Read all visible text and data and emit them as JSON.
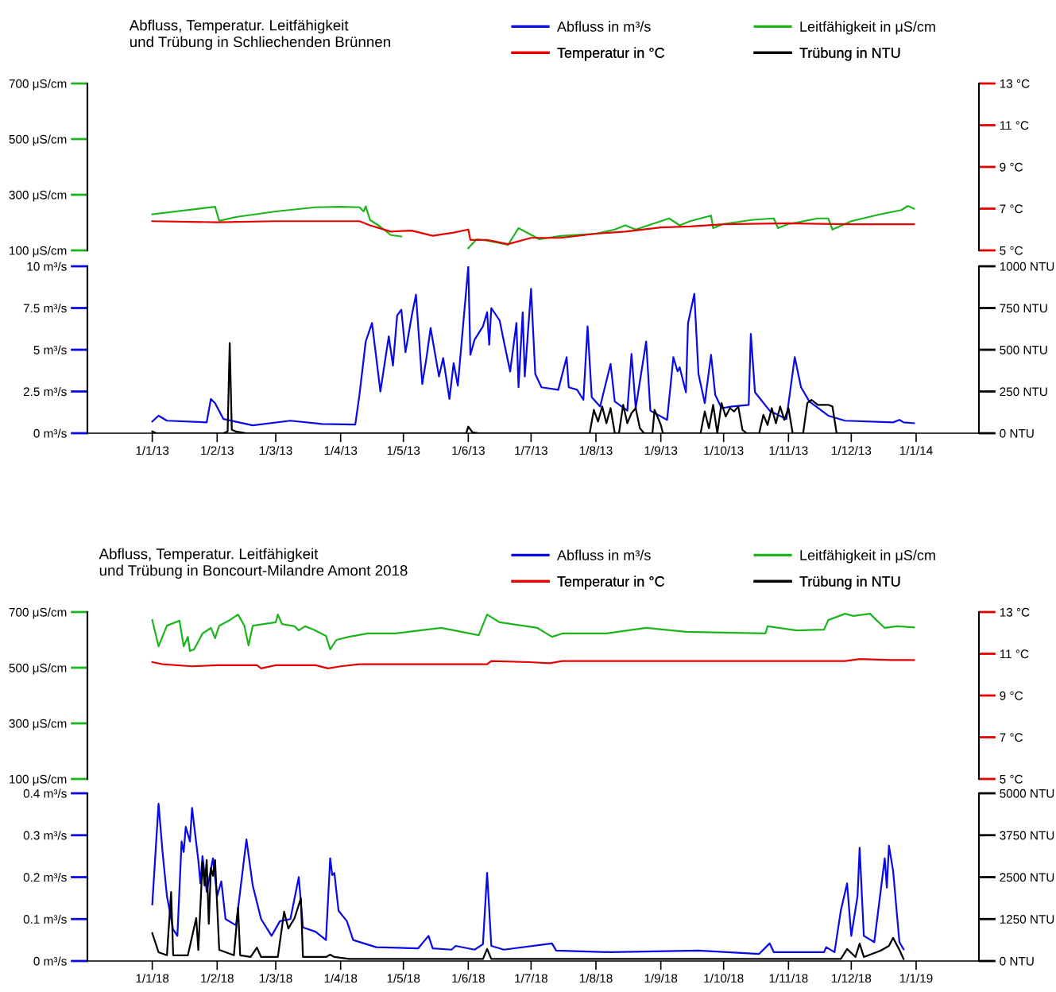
{
  "chart_data": [
    {
      "type": "line",
      "title": "Abfluss, Temperatur. Leitfähigkeit\nund Trübung in Schliechenden Brünnen",
      "legend": "top right",
      "marker": "none",
      "line_style": "solid",
      "grid": false,
      "tick_labels": "y",
      "xlim": [
        "2012-12-01",
        "2014-01-31"
      ],
      "ylim": [
        100,
        700
      ],
      "yticks": [
        {
          "value": 100,
          "label": "100 μS/cm"
        },
        {
          "value": 300,
          "label": "300 μS/cm"
        },
        {
          "value": 500,
          "label": "500 μS/cm"
        },
        {
          "value": 700,
          "label": "700 μS/cm"
        }
      ],
      "y2lim": [
        5,
        13
      ],
      "y2ticks": [
        {
          "value": 5,
          "label": "5 °C"
        },
        {
          "value": 7,
          "label": "7 °C"
        },
        {
          "value": 9,
          "label": "9 °C"
        },
        {
          "value": 11,
          "label": "11 °C"
        },
        {
          "value": 13,
          "label": "13 °C"
        }
      ],
      "series": [
        {
          "name": "Leitfähigkeit in μS/cm",
          "color": "#1eb41e",
          "x": [
            "2013-01-01",
            "2013-01-31",
            "2013-02-02",
            "2013-02-10",
            "2013-03-01",
            "2013-03-20",
            "2013-04-01",
            "2013-04-10",
            "2013-04-12",
            "2013-04-13",
            "2013-04-15",
            "2013-04-20",
            "2013-04-25",
            "2013-04-30",
            "2013-05-15",
            "2013-06-01",
            "2013-06-05",
            "2013-06-10",
            "2013-06-20",
            "2013-06-25",
            "2013-07-05",
            "2013-07-15",
            "2013-08-01",
            "2013-08-10",
            "2013-08-15",
            "2013-08-20",
            "2013-09-01",
            "2013-09-05",
            "2013-09-10",
            "2013-09-15",
            "2013-09-25",
            "2013-09-26",
            "2013-10-01",
            "2013-10-15",
            "2013-10-25",
            "2013-10-27",
            "2013-11-01",
            "2013-11-05",
            "2013-11-15",
            "2013-11-20",
            "2013-11-22",
            "2013-12-01",
            "2013-12-15",
            "2013-12-25",
            "2013-12-28",
            "2013-12-31"
          ],
          "values": [
            230,
            257,
            206,
            220,
            240,
            255,
            257,
            255,
            240,
            258,
            210,
            185,
            155,
            150,
            null,
            108,
            140,
            135,
            120,
            180,
            140,
            152,
            160,
            175,
            190,
            175,
            205,
            215,
            190,
            205,
            225,
            180,
            195,
            210,
            215,
            180,
            195,
            200,
            215,
            215,
            175,
            205,
            230,
            245,
            260,
            250
          ]
        },
        {
          "name": "Temperatur in °C",
          "color": "#e60000",
          "axis": "y2",
          "x": [
            "2013-01-01",
            "2013-02-01",
            "2013-03-01",
            "2013-04-10",
            "2013-04-15",
            "2013-04-25",
            "2013-05-05",
            "2013-05-15",
            "2013-05-25",
            "2013-06-01",
            "2013-06-02",
            "2013-06-10",
            "2013-06-20",
            "2013-07-01",
            "2013-07-15",
            "2013-08-01",
            "2013-08-15",
            "2013-09-01",
            "2013-09-15",
            "2013-10-01",
            "2013-11-01",
            "2013-12-01",
            "2013-12-31"
          ],
          "values": [
            6.4,
            6.35,
            6.4,
            6.4,
            6.2,
            5.9,
            5.95,
            5.7,
            5.85,
            6.0,
            5.5,
            5.5,
            5.3,
            5.6,
            5.6,
            5.8,
            5.9,
            6.1,
            6.15,
            6.25,
            6.3,
            6.25,
            6.25
          ]
        }
      ]
    },
    {
      "type": "line",
      "legend": "top right",
      "marker": "none",
      "line_style": "solid",
      "grid": false,
      "xlim": [
        "2012-12-01",
        "2014-01-31"
      ],
      "xticks": [
        {
          "value": "2013-01-01",
          "label": "1/1/13"
        },
        {
          "value": "2013-02-01",
          "label": "1/2/13"
        },
        {
          "value": "2013-03-01",
          "label": "1/3/13"
        },
        {
          "value": "2013-04-01",
          "label": "1/4/13"
        },
        {
          "value": "2013-05-01",
          "label": "1/5/13"
        },
        {
          "value": "2013-06-01",
          "label": "1/6/13"
        },
        {
          "value": "2013-07-01",
          "label": "1/7/13"
        },
        {
          "value": "2013-08-01",
          "label": "1/8/13"
        },
        {
          "value": "2013-09-01",
          "label": "1/9/13"
        },
        {
          "value": "2013-10-01",
          "label": "1/10/13"
        },
        {
          "value": "2013-11-01",
          "label": "1/11/13"
        },
        {
          "value": "2013-12-01",
          "label": "1/12/13"
        },
        {
          "value": "2014-01-01",
          "label": "1/1/14"
        }
      ],
      "ylim": [
        0,
        10
      ],
      "yticks": [
        {
          "value": 0,
          "label": "0 m³/s"
        },
        {
          "value": 2.5,
          "label": "2.5 m³/s"
        },
        {
          "value": 5,
          "label": "5 m³/s"
        },
        {
          "value": 7.5,
          "label": "7.5 m³/s"
        },
        {
          "value": 10,
          "label": "10 m³/s"
        }
      ],
      "y2lim": [
        0,
        1000
      ],
      "y2ticks": [
        {
          "value": 0,
          "label": "0 NTU"
        },
        {
          "value": 250,
          "label": "250 NTU"
        },
        {
          "value": 500,
          "label": "500 NTU"
        },
        {
          "value": 750,
          "label": "750 NTU"
        },
        {
          "value": 1000,
          "label": "1000 NTU"
        }
      ],
      "series": [
        {
          "name": "Abfluss in m³/s",
          "color": "#0a0ae6",
          "x": [
            "2013-01-01",
            "2013-01-04",
            "2013-01-08",
            "2013-01-27",
            "2013-01-29",
            "2013-01-31",
            "2013-02-04",
            "2013-02-18",
            "2013-03-08",
            "2013-03-23",
            "2013-04-08",
            "2013-04-10",
            "2013-04-13",
            "2013-04-16",
            "2013-04-20",
            "2013-04-24",
            "2013-04-26",
            "2013-04-28",
            "2013-04-30",
            "2013-05-02",
            "2013-05-05",
            "2013-05-07",
            "2013-05-10",
            "2013-05-12",
            "2013-05-14",
            "2013-05-18",
            "2013-05-20",
            "2013-05-23",
            "2013-05-25",
            "2013-05-27",
            "2013-06-01",
            "2013-06-02",
            "2013-06-04",
            "2013-06-08",
            "2013-06-10",
            "2013-06-11",
            "2013-06-12",
            "2013-06-16",
            "2013-06-18",
            "2013-06-21",
            "2013-06-24",
            "2013-06-25",
            "2013-06-27",
            "2013-06-28",
            "2013-07-01",
            "2013-07-03",
            "2013-07-06",
            "2013-07-14",
            "2013-07-18",
            "2013-07-19",
            "2013-07-23",
            "2013-07-26",
            "2013-07-28",
            "2013-07-30",
            "2013-08-03",
            "2013-08-08",
            "2013-08-10",
            "2013-08-16",
            "2013-08-18",
            "2013-08-20",
            "2013-08-25",
            "2013-08-27",
            "2013-09-04",
            "2013-09-07",
            "2013-09-09",
            "2013-09-10",
            "2013-09-13",
            "2013-09-14",
            "2013-09-17",
            "2013-09-19",
            "2013-09-22",
            "2013-09-25",
            "2013-09-27",
            "2013-09-30",
            "2013-10-05",
            "2013-10-13",
            "2013-10-14",
            "2013-10-16",
            "2013-10-23",
            "2013-10-31",
            "2013-11-04",
            "2013-11-07",
            "2013-11-11",
            "2013-11-20",
            "2013-11-28",
            "2013-12-21",
            "2013-12-24",
            "2013-12-26",
            "2013-12-31"
          ],
          "values": [
            0.7,
            1.05,
            0.75,
            0.65,
            2.05,
            1.8,
            0.85,
            0.47,
            0.75,
            0.55,
            0.52,
            2.3,
            5.5,
            6.6,
            2.5,
            5.8,
            4.05,
            7.05,
            7.4,
            4.85,
            7.05,
            8.3,
            2.95,
            4.5,
            6.3,
            3.4,
            4.5,
            2.05,
            4.2,
            2.85,
            10,
            4.7,
            5.6,
            6.4,
            7.25,
            5.3,
            7.5,
            6.75,
            5.5,
            3.7,
            6.6,
            2.75,
            7.25,
            3.4,
            8.65,
            3.55,
            2.75,
            2.6,
            4.55,
            2.75,
            2.6,
            2.0,
            6.4,
            2.15,
            1.6,
            4.15,
            1.9,
            1.35,
            4.75,
            1.5,
            5.5,
            1.35,
            0.8,
            4.55,
            3.7,
            3.95,
            2.45,
            6.6,
            8.35,
            3.55,
            1.8,
            4.7,
            2.3,
            1.5,
            1.6,
            1.7,
            5.95,
            2.45,
            1.35,
            0.85,
            4.55,
            2.75,
            1.9,
            1.05,
            0.75,
            0.65,
            0.8,
            0.65,
            0.6
          ]
        },
        {
          "name": "Trübung in NTU",
          "color": "#000000",
          "axis": "y2",
          "x": [
            "2013-01-01",
            "2013-01-03",
            "2013-02-04",
            "2013-02-06",
            "2013-02-07",
            "2013-02-08",
            "2013-02-10",
            "2013-02-15",
            "2013-05-31",
            "2013-06-01",
            "2013-06-03",
            "2013-06-06",
            "2013-07-29",
            "2013-07-31",
            "2013-08-02",
            "2013-08-04",
            "2013-08-06",
            "2013-08-08",
            "2013-08-10",
            "2013-08-12",
            "2013-08-14",
            "2013-08-16",
            "2013-08-18",
            "2013-08-20",
            "2013-08-22",
            "2013-08-24",
            "2013-08-28",
            "2013-08-29",
            "2013-09-01",
            "2013-09-02",
            "2013-09-20",
            "2013-09-22",
            "2013-09-24",
            "2013-09-26",
            "2013-09-28",
            "2013-09-30",
            "2013-10-02",
            "2013-10-04",
            "2013-10-06",
            "2013-10-08",
            "2013-10-10",
            "2013-10-12",
            "2013-10-18",
            "2013-10-20",
            "2013-10-22",
            "2013-10-24",
            "2013-10-26",
            "2013-10-28",
            "2013-10-30",
            "2013-11-01",
            "2013-11-03",
            "2013-11-08",
            "2013-11-10",
            "2013-11-12",
            "2013-11-15",
            "2013-11-20",
            "2013-11-22",
            "2013-11-24",
            "2013-12-31"
          ],
          "values": [
            10,
            0,
            0,
            10,
            540,
            20,
            10,
            0,
            0,
            40,
            5,
            0,
            0,
            140,
            70,
            160,
            60,
            150,
            0,
            0,
            170,
            60,
            120,
            150,
            30,
            0,
            0,
            140,
            50,
            0,
            0,
            130,
            30,
            170,
            0,
            180,
            100,
            150,
            130,
            160,
            20,
            0,
            0,
            110,
            50,
            150,
            60,
            160,
            80,
            150,
            0,
            0,
            180,
            200,
            170,
            170,
            160,
            0,
            0
          ]
        }
      ]
    },
    {
      "type": "line",
      "title": "Abfluss, Temperatur. Leitfähigkeit\nund Trübung in Boncourt-Milandre Amont 2018",
      "legend": "top right",
      "marker": "none",
      "line_style": "solid",
      "grid": false,
      "tick_labels": "y",
      "xlim": [
        "2017-12-01",
        "2019-01-31"
      ],
      "ylim": [
        100,
        700
      ],
      "yticks": [
        {
          "value": 100,
          "label": "100 μS/cm"
        },
        {
          "value": 300,
          "label": "300 μS/cm"
        },
        {
          "value": 500,
          "label": "500 μS/cm"
        },
        {
          "value": 700,
          "label": "700 μS/cm"
        }
      ],
      "y2lim": [
        5,
        13
      ],
      "y2ticks": [
        {
          "value": 5,
          "label": "5 °C"
        },
        {
          "value": 7,
          "label": "7 °C"
        },
        {
          "value": 9,
          "label": "9 °C"
        },
        {
          "value": 11,
          "label": "11 °C"
        },
        {
          "value": 13,
          "label": "13 °C"
        }
      ],
      "series": [
        {
          "name": "Leitfähigkeit in μS/cm",
          "color": "#1eb41e",
          "x": [
            "2018-01-01",
            "2018-01-04",
            "2018-01-08",
            "2018-01-14",
            "2018-01-16",
            "2018-01-18",
            "2018-01-19",
            "2018-01-21",
            "2018-01-25",
            "2018-01-29",
            "2018-01-31",
            "2018-02-02",
            "2018-02-07",
            "2018-02-11",
            "2018-02-14",
            "2018-02-16",
            "2018-02-18",
            "2018-03-01",
            "2018-03-02",
            "2018-03-04",
            "2018-03-10",
            "2018-03-12",
            "2018-03-15",
            "2018-03-19",
            "2018-03-25",
            "2018-03-27",
            "2018-03-30",
            "2018-04-05",
            "2018-04-14",
            "2018-04-27",
            "2018-05-19",
            "2018-06-06",
            "2018-06-10",
            "2018-06-16",
            "2018-07-04",
            "2018-07-11",
            "2018-07-16",
            "2018-08-06",
            "2018-08-25",
            "2018-09-13",
            "2018-10-21",
            "2018-10-22",
            "2018-11-05",
            "2018-11-18",
            "2018-11-20",
            "2018-11-28",
            "2018-12-02",
            "2018-12-10",
            "2018-12-13",
            "2018-12-17",
            "2018-12-23",
            "2018-12-31"
          ],
          "values": [
            671,
            577,
            651,
            669,
            577,
            611,
            560,
            566,
            623,
            643,
            606,
            651,
            671,
            691,
            651,
            580,
            651,
            663,
            691,
            657,
            649,
            634,
            649,
            637,
            614,
            566,
            600,
            611,
            623,
            623,
            643,
            617,
            691,
            663,
            643,
            611,
            623,
            623,
            643,
            629,
            623,
            649,
            634,
            637,
            671,
            694,
            686,
            694,
            671,
            643,
            649,
            645
          ]
        },
        {
          "name": "Temperatur in °C",
          "color": "#e60000",
          "axis": "y2",
          "x": [
            "2018-01-01",
            "2018-01-06",
            "2018-01-20",
            "2018-02-01",
            "2018-02-20",
            "2018-02-22",
            "2018-03-01",
            "2018-03-20",
            "2018-03-26",
            "2018-04-01",
            "2018-04-10",
            "2018-06-10",
            "2018-06-12",
            "2018-06-30",
            "2018-07-10",
            "2018-07-16",
            "2018-11-28",
            "2018-12-05",
            "2018-12-20",
            "2018-12-31"
          ],
          "values": [
            10.6,
            10.5,
            10.4,
            10.45,
            10.45,
            10.3,
            10.45,
            10.45,
            10.3,
            10.4,
            10.5,
            10.5,
            10.65,
            10.6,
            10.55,
            10.65,
            10.65,
            10.75,
            10.7,
            10.7
          ]
        }
      ]
    },
    {
      "type": "line",
      "legend": "top right",
      "marker": "none",
      "line_style": "solid",
      "grid": false,
      "xlim": [
        "2017-12-01",
        "2019-01-31"
      ],
      "xticks": [
        {
          "value": "2018-01-01",
          "label": "1/1/18"
        },
        {
          "value": "2018-02-01",
          "label": "1/2/18"
        },
        {
          "value": "2018-03-01",
          "label": "1/3/18"
        },
        {
          "value": "2018-04-01",
          "label": "1/4/18"
        },
        {
          "value": "2018-05-01",
          "label": "1/5/18"
        },
        {
          "value": "2018-06-01",
          "label": "1/6/18"
        },
        {
          "value": "2018-07-01",
          "label": "1/7/18"
        },
        {
          "value": "2018-08-01",
          "label": "1/8/18"
        },
        {
          "value": "2018-09-01",
          "label": "1/9/18"
        },
        {
          "value": "2018-10-01",
          "label": "1/10/18"
        },
        {
          "value": "2018-11-01",
          "label": "1/11/18"
        },
        {
          "value": "2018-12-01",
          "label": "1/12/18"
        },
        {
          "value": "2019-01-01",
          "label": "1/1/19"
        }
      ],
      "ylim": [
        0,
        0.4
      ],
      "yticks": [
        {
          "value": 0,
          "label": "0 m³/s"
        },
        {
          "value": 0.1,
          "label": "0.1 m³/s"
        },
        {
          "value": 0.2,
          "label": "0.2 m³/s"
        },
        {
          "value": 0.3,
          "label": "0.3 m³/s"
        },
        {
          "value": 0.4,
          "label": "0.4 m³/s"
        }
      ],
      "y2lim": [
        0,
        5000
      ],
      "y2ticks": [
        {
          "value": 0,
          "label": "0 NTU"
        },
        {
          "value": 1250,
          "label": "1250 NTU"
        },
        {
          "value": 2500,
          "label": "2500 NTU"
        },
        {
          "value": 3750,
          "label": "3750 NTU"
        },
        {
          "value": 5000,
          "label": "5000 NTU"
        }
      ],
      "series": [
        {
          "name": "Abfluss in m³/s",
          "color": "#0a0ae6",
          "x": [
            "2018-01-01",
            "2018-01-04",
            "2018-01-06",
            "2018-01-08",
            "2018-01-11",
            "2018-01-13",
            "2018-01-15",
            "2018-01-16",
            "2018-01-17",
            "2018-01-19",
            "2018-01-20",
            "2018-01-23",
            "2018-01-24",
            "2018-01-25",
            "2018-01-27",
            "2018-01-30",
            "2018-02-01",
            "2018-02-03",
            "2018-02-05",
            "2018-02-10",
            "2018-02-15",
            "2018-02-18",
            "2018-02-22",
            "2018-02-27",
            "2018-03-03",
            "2018-03-08",
            "2018-03-12",
            "2018-03-14",
            "2018-03-20",
            "2018-03-25",
            "2018-03-27",
            "2018-03-28",
            "2018-03-29",
            "2018-03-31",
            "2018-04-04",
            "2018-04-07",
            "2018-04-18",
            "2018-05-08",
            "2018-05-13",
            "2018-05-15",
            "2018-05-24",
            "2018-05-26",
            "2018-06-04",
            "2018-06-08",
            "2018-06-10",
            "2018-06-12",
            "2018-06-18",
            "2018-07-11",
            "2018-07-13",
            "2018-08-08",
            "2018-09-19",
            "2018-10-18",
            "2018-10-23",
            "2018-10-25",
            "2018-11-18",
            "2018-11-19",
            "2018-11-23",
            "2018-11-26",
            "2018-11-29",
            "2018-12-01",
            "2018-12-04",
            "2018-12-05",
            "2018-12-07",
            "2018-12-12",
            "2018-12-17",
            "2018-12-18",
            "2018-12-19",
            "2018-12-21",
            "2018-12-24",
            "2018-12-26"
          ],
          "values": [
            0.135,
            0.375,
            0.255,
            0.155,
            0.075,
            0.06,
            0.285,
            0.26,
            0.32,
            0.285,
            0.365,
            0.24,
            0.185,
            0.25,
            0.165,
            0.245,
            0.155,
            0.19,
            0.1,
            0.085,
            0.29,
            0.18,
            0.1,
            0.06,
            0.095,
            0.1,
            0.2,
            0.08,
            0.07,
            0.05,
            0.245,
            0.205,
            0.21,
            0.12,
            0.095,
            0.05,
            0.033,
            0.03,
            0.06,
            0.03,
            0.027,
            0.036,
            0.027,
            0.04,
            0.21,
            0.036,
            0.027,
            0.042,
            0.025,
            0.021,
            0.025,
            0.017,
            0.042,
            0.021,
            0.021,
            0.033,
            0.021,
            0.12,
            0.185,
            0.06,
            0.155,
            0.27,
            0.06,
            0.045,
            0.245,
            0.175,
            0.275,
            0.215,
            0.045,
            0.028
          ]
        },
        {
          "name": "Trübung in NTU",
          "color": "#000000",
          "axis": "y2",
          "x": [
            "2018-01-01",
            "2018-01-04",
            "2018-01-08",
            "2018-01-10",
            "2018-01-11",
            "2018-01-18",
            "2018-01-22",
            "2018-01-23",
            "2018-01-25",
            "2018-01-26",
            "2018-01-27",
            "2018-01-28",
            "2018-01-29",
            "2018-01-30",
            "2018-01-31",
            "2018-02-02",
            "2018-02-09",
            "2018-02-11",
            "2018-02-12",
            "2018-02-17",
            "2018-02-20",
            "2018-02-22",
            "2018-03-02",
            "2018-03-05",
            "2018-03-07",
            "2018-03-10",
            "2018-03-13",
            "2018-03-14",
            "2018-03-25",
            "2018-03-27",
            "2018-03-29",
            "2018-04-05",
            "2018-06-08",
            "2018-06-10",
            "2018-06-12",
            "2018-11-26",
            "2018-11-29",
            "2018-12-03",
            "2018-12-05",
            "2018-12-07",
            "2018-12-15",
            "2018-12-19",
            "2018-12-21",
            "2018-12-24",
            "2018-12-26"
          ],
          "values": [
            830,
            260,
            170,
            2060,
            170,
            170,
            1280,
            330,
            2940,
            2250,
            3010,
            1110,
            2770,
            2540,
            3010,
            330,
            170,
            1590,
            170,
            120,
            400,
            120,
            120,
            1470,
            970,
            1280,
            1870,
            120,
            120,
            190,
            120,
            60,
            60,
            360,
            60,
            60,
            360,
            120,
            520,
            120,
            310,
            450,
            690,
            330,
            60
          ]
        }
      ]
    }
  ]
}
